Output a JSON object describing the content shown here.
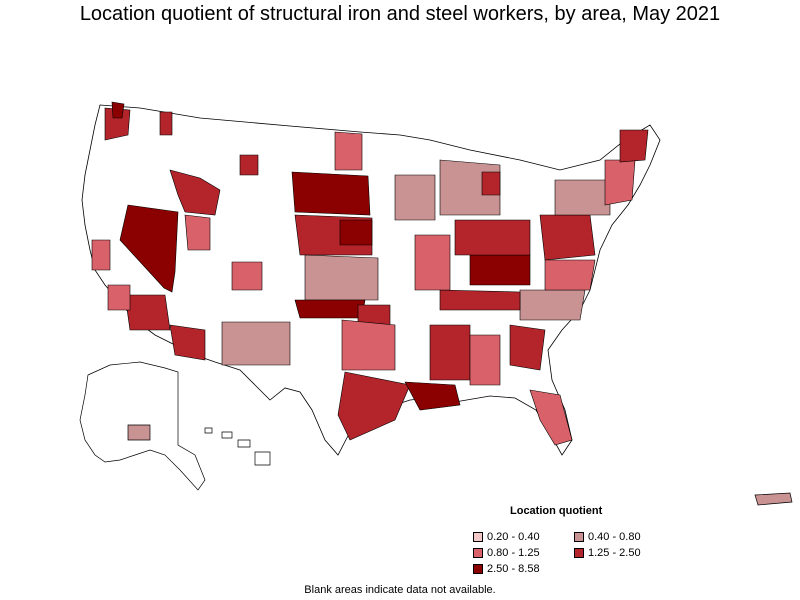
{
  "title": "Location quotient of structural iron and steel workers, by area, May 2021",
  "legend": {
    "title": "Location quotient",
    "items": [
      {
        "label": "0.20 - 0.40",
        "color": "#f2c8c8"
      },
      {
        "label": "0.40 - 0.80",
        "color": "#c99393"
      },
      {
        "label": "0.80 - 1.25",
        "color": "#d9626a"
      },
      {
        "label": "1.25 - 2.50",
        "color": "#b3242b"
      },
      {
        "label": "2.50 - 8.58",
        "color": "#8b0000"
      }
    ]
  },
  "footnote": "Blank areas indicate data not available.",
  "colors": {
    "blank": "#ffffff",
    "border": "#000000"
  }
}
